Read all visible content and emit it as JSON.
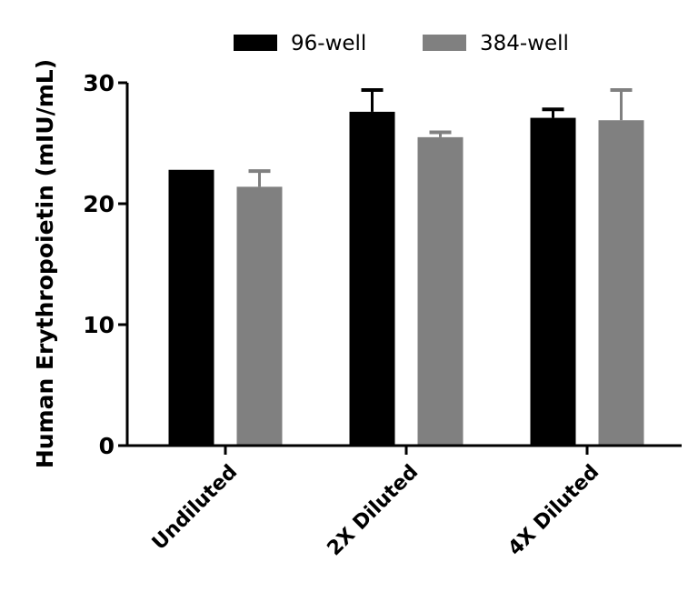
{
  "chart_data": {
    "type": "bar",
    "title": "",
    "xlabel": "",
    "ylabel": "Human Erythropoietin (mIU/mL)",
    "ylim": [
      0,
      30
    ],
    "yticks": [
      0,
      10,
      20,
      30
    ],
    "categories": [
      "Undiluted",
      "2X Diluted",
      "4X Diluted"
    ],
    "series": [
      {
        "name": "96-well",
        "color": "#000000",
        "values": [
          22.8,
          27.6,
          27.1
        ],
        "errors": [
          0,
          1.8,
          0.7
        ]
      },
      {
        "name": "384-well",
        "color": "#808080",
        "values": [
          21.4,
          25.5,
          26.9
        ],
        "errors": [
          1.3,
          0.4,
          2.5
        ]
      }
    ],
    "legend_position": "top",
    "grid": false
  }
}
